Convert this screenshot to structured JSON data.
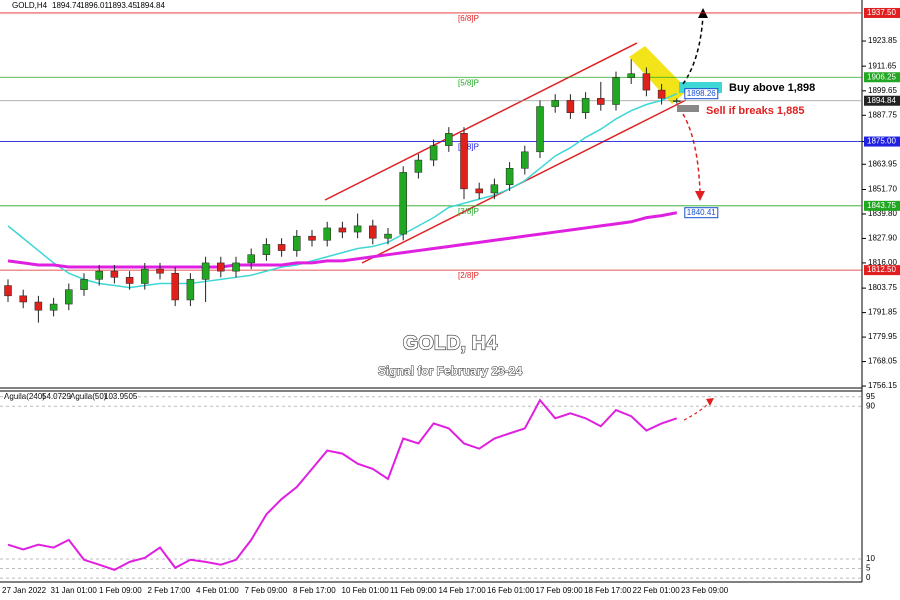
{
  "chart_data": [
    {
      "type": "candlestick",
      "symbol": "GOLD,H4",
      "title": "GOLD, H4",
      "subtitle": "Signal for February 23-24",
      "annotations": [
        "Buy above 1,898",
        "Sell if breaks 1,885"
      ],
      "ylim": [
        1755.2,
        1943.8
      ],
      "yticks": [
        1923.85,
        1911.65,
        1899.65,
        1887.75,
        {
          "value": 1875.0,
          "label": "1875.00"
        },
        1863.95,
        {
          "value": 1851.7,
          "label": "1851.70"
        },
        {
          "value": 1839.8,
          "label": "1839.80"
        },
        {
          "value": 1827.9,
          "label": "1827.90"
        },
        {
          "value": 1816.0,
          "label": "1816.00"
        },
        1803.75,
        1791.85,
        1779.95,
        1768.05,
        1756.15
      ],
      "xlabels": [
        "27 Jan 2022",
        "31 Jan 01:00",
        "1 Feb 09:00",
        "2 Feb 17:00",
        "4 Feb 01:00",
        "7 Feb 09:00",
        "8 Feb 17:00",
        "10 Feb 01:00",
        "11 Feb 09:00",
        "14 Feb 17:00",
        "16 Feb 01:00",
        "17 Feb 09:00",
        "18 Feb 17:00",
        "22 Feb 01:00",
        "23 Feb 09:00"
      ],
      "up_color": "#22a722",
      "down_color": "#e0201a",
      "open": [
        1805,
        1800,
        1797,
        1793,
        1796,
        1803,
        1808,
        1812,
        1809,
        1806,
        1813,
        1811,
        1798,
        1808,
        1816,
        1812,
        1816,
        1820,
        1825,
        1822,
        1829,
        1827,
        1833,
        1831,
        1834,
        1828,
        1830,
        1860,
        1866,
        1873,
        1879,
        1852,
        1850,
        1854,
        1862,
        1870,
        1892,
        1895,
        1889,
        1896,
        1893,
        1906,
        1908,
        1900,
        1894.74
      ],
      "high": [
        1808,
        1803,
        1800,
        1799,
        1806,
        1811,
        1815,
        1815,
        1812,
        1816,
        1816,
        1814,
        1811,
        1819,
        1819,
        1819,
        1823,
        1828,
        1828,
        1832,
        1832,
        1836,
        1836,
        1840,
        1837,
        1833,
        1863,
        1869,
        1876,
        1882,
        1882,
        1855,
        1857,
        1865,
        1873,
        1895,
        1898,
        1898,
        1899,
        1904,
        1909,
        1915,
        1911,
        1903,
        1896.01
      ],
      "low": [
        1797,
        1794,
        1787,
        1790,
        1793,
        1800,
        1805,
        1806,
        1803,
        1803,
        1808,
        1795,
        1795,
        1797,
        1809,
        1809,
        1813,
        1817,
        1819,
        1819,
        1824,
        1824,
        1828,
        1828,
        1825,
        1825,
        1827,
        1857,
        1863,
        1870,
        1847,
        1847,
        1847,
        1851,
        1859,
        1867,
        1889,
        1886,
        1886,
        1890,
        1890,
        1903,
        1897,
        1893,
        1893.45
      ],
      "close": [
        1800,
        1797,
        1793,
        1796,
        1803,
        1808,
        1812,
        1809,
        1806,
        1813,
        1811,
        1798,
        1808,
        1816,
        1812,
        1816,
        1820,
        1825,
        1822,
        1829,
        1827,
        1833,
        1831,
        1834,
        1828,
        1830,
        1860,
        1866,
        1873,
        1879,
        1852,
        1850,
        1854,
        1862,
        1870,
        1892,
        1895,
        1889,
        1896,
        1893,
        1906,
        1908,
        1900,
        1896,
        1894.84
      ],
      "series": [
        {
          "color": "#3fd6d6",
          "label_color": "#1a4fd0",
          "values": [
            1834,
            1828,
            1822,
            1816,
            1811,
            1808,
            1806,
            1805,
            1804,
            1805,
            1806,
            1806,
            1806,
            1807,
            1808,
            1809,
            1810,
            1812,
            1814,
            1815,
            1817,
            1819,
            1821,
            1823,
            1824,
            1826,
            1830,
            1834,
            1838,
            1843,
            1845,
            1847,
            1849,
            1852,
            1856,
            1862,
            1868,
            1872,
            1877,
            1881,
            1886,
            1890,
            1893,
            1895,
            1898.26
          ]
        },
        {
          "color": "#e020e0",
          "label_color": "#1a4fd0",
          "values": [
            1817,
            1816,
            1815,
            1815,
            1814,
            1814,
            1814,
            1814,
            1814,
            1814,
            1814,
            1814,
            1814,
            1814,
            1814,
            1815,
            1815,
            1815,
            1815,
            1816,
            1816,
            1817,
            1817,
            1818,
            1819,
            1820,
            1821,
            1822,
            1823,
            1824,
            1825,
            1826,
            1827,
            1828,
            1829,
            1830,
            1831,
            1832,
            1833,
            1834,
            1835,
            1836,
            1838,
            1839,
            1840.41
          ]
        }
      ],
      "levels": [
        {
          "name": "[6/8]P",
          "value": {
            "value": 1937.5,
            "label": "1937.50"
          },
          "color": "#e02020"
        },
        {
          "name": "[5/8]P",
          "value": {
            "value": 1906.25,
            "label": "1906.25"
          },
          "color": "#22a722"
        },
        {
          "name": "[4/8]P",
          "value": {
            "value": 1875.0,
            "label": "1875.00"
          },
          "color": "#2020e0"
        },
        {
          "name": "[3/8]P",
          "value": {
            "value": 1843.75,
            "label": "1843.75"
          },
          "color": "#22a722"
        },
        {
          "name": "[2/8]P",
          "value": {
            "value": 1812.5,
            "label": "1812.50"
          },
          "color": "#e02020"
        }
      ],
      "price_line": 1894.84
    },
    {
      "type": "line",
      "readouts": [
        {
          "name": "Aguila(240)",
          "value": 54.0729
        },
        {
          "name": "Aguila(50)",
          "value": 103.9505
        }
      ],
      "ylim": [
        -1,
        98
      ],
      "yticks": [
        95,
        90,
        10,
        5,
        0
      ],
      "series": [
        {
          "color": "#e020e0",
          "values": [
            17.5,
            15,
            17.5,
            16,
            20,
            9.6,
            7,
            4.3,
            8.5,
            10.6,
            16,
            5.4,
            9.6,
            8.5,
            7,
            9.6,
            20,
            33.4,
            41.4,
            47.7,
            57.2,
            66.8,
            65.2,
            59.9,
            57.2,
            51.9,
            73.1,
            70.5,
            81,
            78.4,
            70.5,
            67.8,
            73.1,
            75.8,
            78.4,
            93.2,
            83.7,
            86.3,
            83.7,
            79.5,
            88,
            84.8,
            77.3,
            81,
            83.7
          ]
        }
      ]
    }
  ]
}
